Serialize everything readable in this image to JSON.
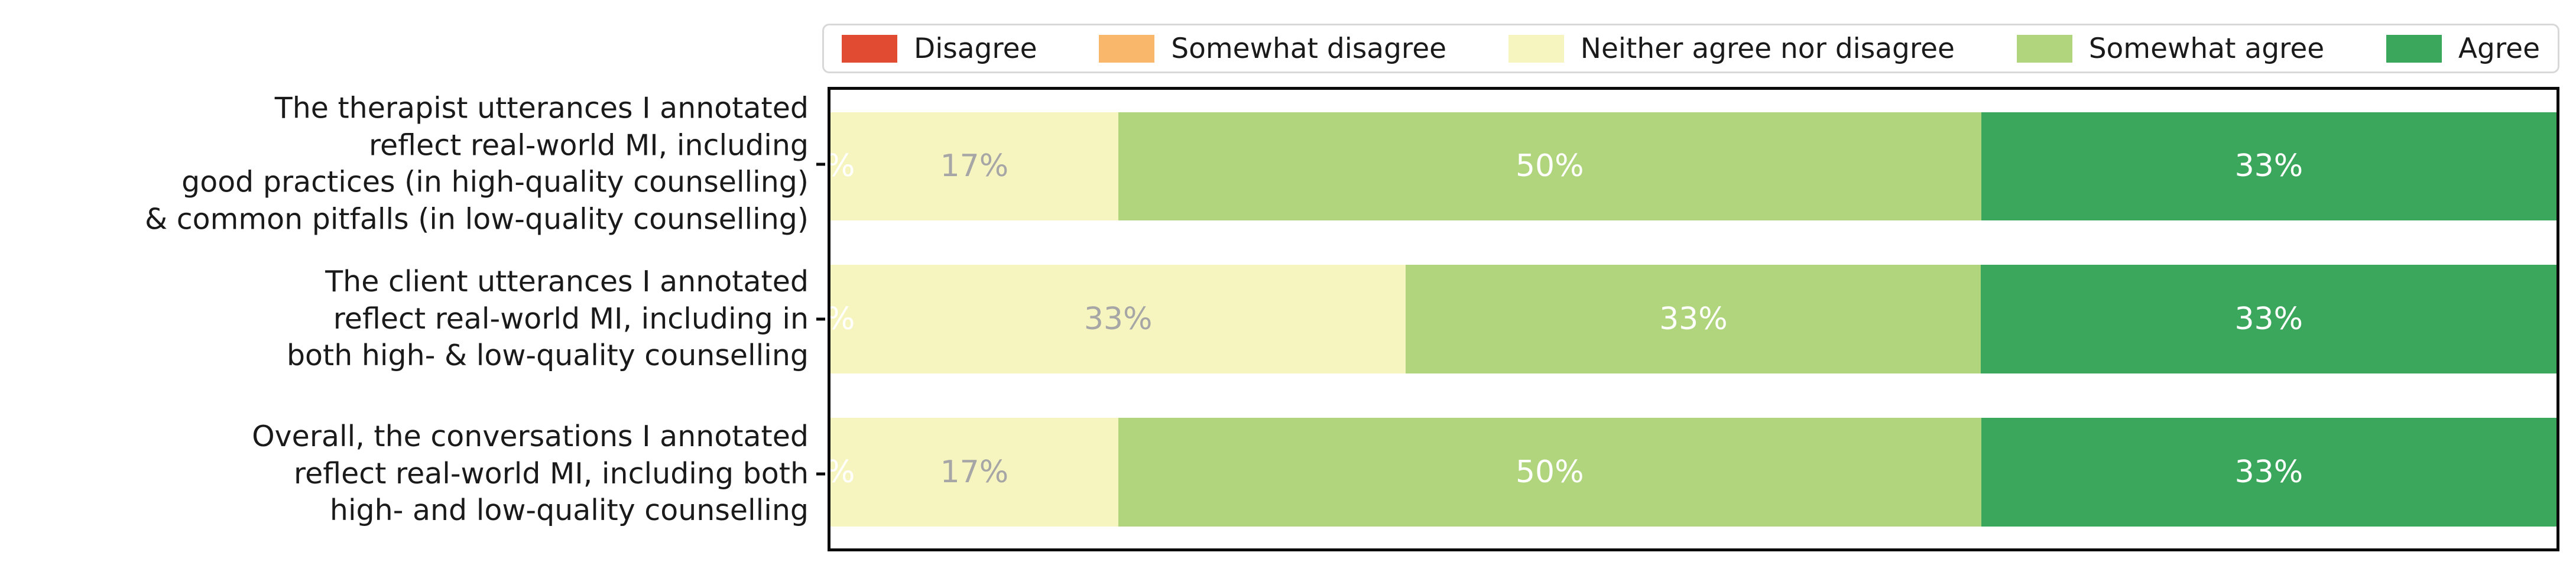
{
  "figure": {
    "background": "#ffffff"
  },
  "legend": {
    "border_color": "#d8d8d8",
    "items": [
      {
        "label": "Disagree",
        "color": "#e14b31"
      },
      {
        "label": "Somewhat disagree",
        "color": "#f9b76b"
      },
      {
        "label": "Neither agree nor disagree",
        "color": "#f7f5bf"
      },
      {
        "label": "Somewhat agree",
        "color": "#b1d57d"
      },
      {
        "label": "Agree",
        "color": "#3aa75c"
      }
    ]
  },
  "chart_data": {
    "type": "bar",
    "orientation": "horizontal",
    "stacked": true,
    "grid": false,
    "frame": true,
    "legend_position": "top",
    "xlim": [
      0,
      100
    ],
    "unit": "percent",
    "categories": [
      "The therapist utterances I annotated\nreflect real-world MI, including\ngood practices (in high-quality counselling)\n& common pitfalls (in low-quality counselling)",
      "The client utterances I annotated\nreflect real-world MI, including in\nboth high- & low-quality counselling",
      "Overall, the conversations I annotated\nreflect real-world MI, including both\nhigh- and low-quality counselling"
    ],
    "series": [
      {
        "name": "Disagree",
        "color": "#e14b31",
        "values": [
          0,
          0,
          0
        ],
        "labels": [
          "0%",
          "0%",
          "0%"
        ],
        "label_color": "#ffffff"
      },
      {
        "name": "Somewhat disagree",
        "color": "#f9b76b",
        "values": [
          0,
          0,
          0
        ],
        "labels": [
          "0%",
          "0%",
          "0%"
        ],
        "label_color": "#ffffff"
      },
      {
        "name": "Neither agree nor disagree",
        "color": "#f7f5bf",
        "values": [
          16.67,
          33.33,
          16.67
        ],
        "labels": [
          "17%",
          "33%",
          "17%"
        ],
        "label_color": "#a6a6a6"
      },
      {
        "name": "Somewhat agree",
        "color": "#b1d57d",
        "values": [
          50,
          33.33,
          50
        ],
        "labels": [
          "50%",
          "33%",
          "50%"
        ],
        "label_color": "#ffffff"
      },
      {
        "name": "Agree",
        "color": "#3aa75c",
        "values": [
          33.33,
          33.34,
          33.33
        ],
        "labels": [
          "33%",
          "33%",
          "33%"
        ],
        "label_color": "#ffffff"
      }
    ],
    "axis_color": "#0a0a0a",
    "text_color": "#1a1a1a"
  }
}
